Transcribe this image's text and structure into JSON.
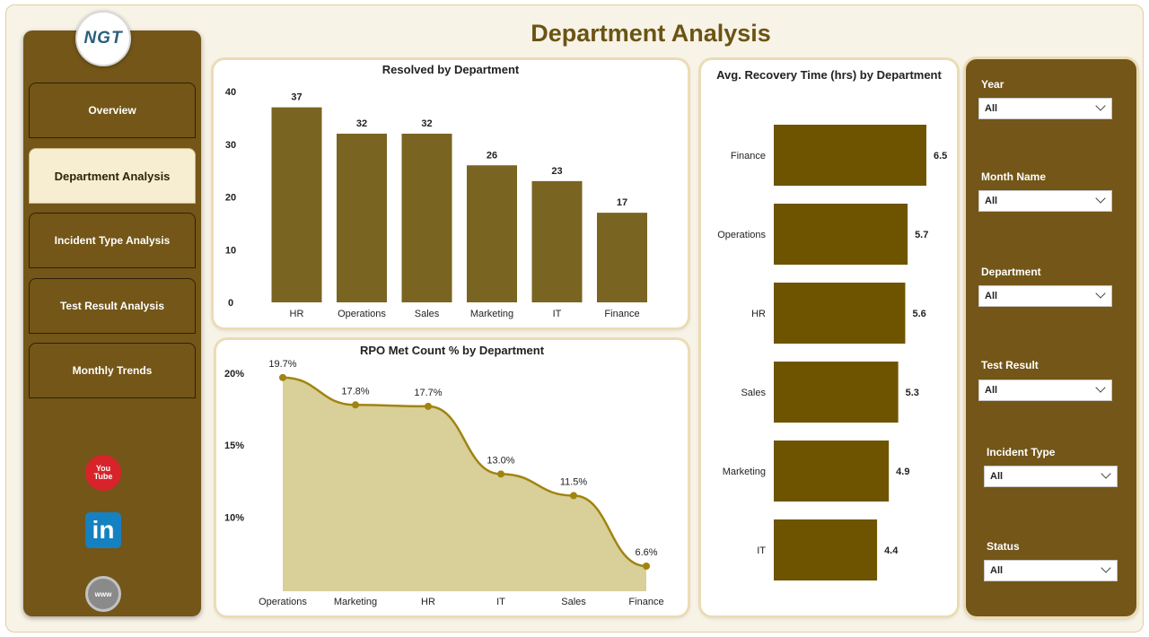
{
  "page": {
    "title": "Department Analysis"
  },
  "logo": {
    "text": "NGT"
  },
  "nav": {
    "items": [
      {
        "label": "Overview",
        "active": false
      },
      {
        "label": "Department Analysis",
        "active": true
      },
      {
        "label": "Incident Type Analysis",
        "active": false
      },
      {
        "label": "Test Result Analysis",
        "active": false
      },
      {
        "label": "Monthly Trends",
        "active": false
      }
    ]
  },
  "social": {
    "youtube_icon": "youtube-icon",
    "linkedin_icon": "linkedin-icon",
    "website_icon": "globe-icon",
    "youtube_top": "You",
    "youtube_bottom": "Tube",
    "linkedin_text": "in",
    "website_text": "www"
  },
  "filters": [
    {
      "label": "Year",
      "value": "All"
    },
    {
      "label": "Month Name",
      "value": "All"
    },
    {
      "label": "Department",
      "value": "All"
    },
    {
      "label": "Test Result",
      "value": "All"
    },
    {
      "label": "Incident Type",
      "value": "All"
    },
    {
      "label": "Status",
      "value": "All"
    }
  ],
  "colors": {
    "brand_dark": "#735618",
    "bar_olive": "#7a6422",
    "bar_dark": "#6e5400",
    "area_fill": "#d9cf99",
    "line": "#a08410",
    "title": "#6b5414"
  },
  "chart_data": [
    {
      "id": "resolved",
      "type": "bar",
      "title": "Resolved by Department",
      "categories": [
        "HR",
        "Operations",
        "Sales",
        "Marketing",
        "IT",
        "Finance"
      ],
      "values": [
        37,
        32,
        32,
        26,
        23,
        17
      ],
      "yticks": [
        0,
        10,
        20,
        30,
        40
      ],
      "ylim": [
        0,
        40
      ],
      "xlabel": "",
      "ylabel": "",
      "grid": false
    },
    {
      "id": "rpo",
      "type": "area",
      "title": "RPO Met Count % by Department",
      "categories": [
        "Operations",
        "Marketing",
        "HR",
        "IT",
        "Sales",
        "Finance"
      ],
      "values": [
        19.7,
        17.8,
        17.7,
        13.0,
        11.5,
        6.6
      ],
      "labels": [
        "19.7%",
        "17.8%",
        "17.7%",
        "13.0%",
        "11.5%",
        "6.6%"
      ],
      "yticks": [
        "10%",
        "15%",
        "20%"
      ],
      "ytick_values": [
        10,
        15,
        20
      ],
      "ylim": [
        6.6,
        20
      ],
      "xlabel": "",
      "ylabel": "",
      "grid": false
    },
    {
      "id": "recovery",
      "type": "bar",
      "orientation": "horizontal",
      "title": "Avg. Recovery Time (hrs) by Department",
      "categories": [
        "Finance",
        "Operations",
        "HR",
        "Sales",
        "Marketing",
        "IT"
      ],
      "values": [
        6.5,
        5.7,
        5.6,
        5.3,
        4.9,
        4.4
      ],
      "xlim": [
        0,
        6.5
      ],
      "xlabel": "",
      "ylabel": "",
      "grid": false
    }
  ]
}
